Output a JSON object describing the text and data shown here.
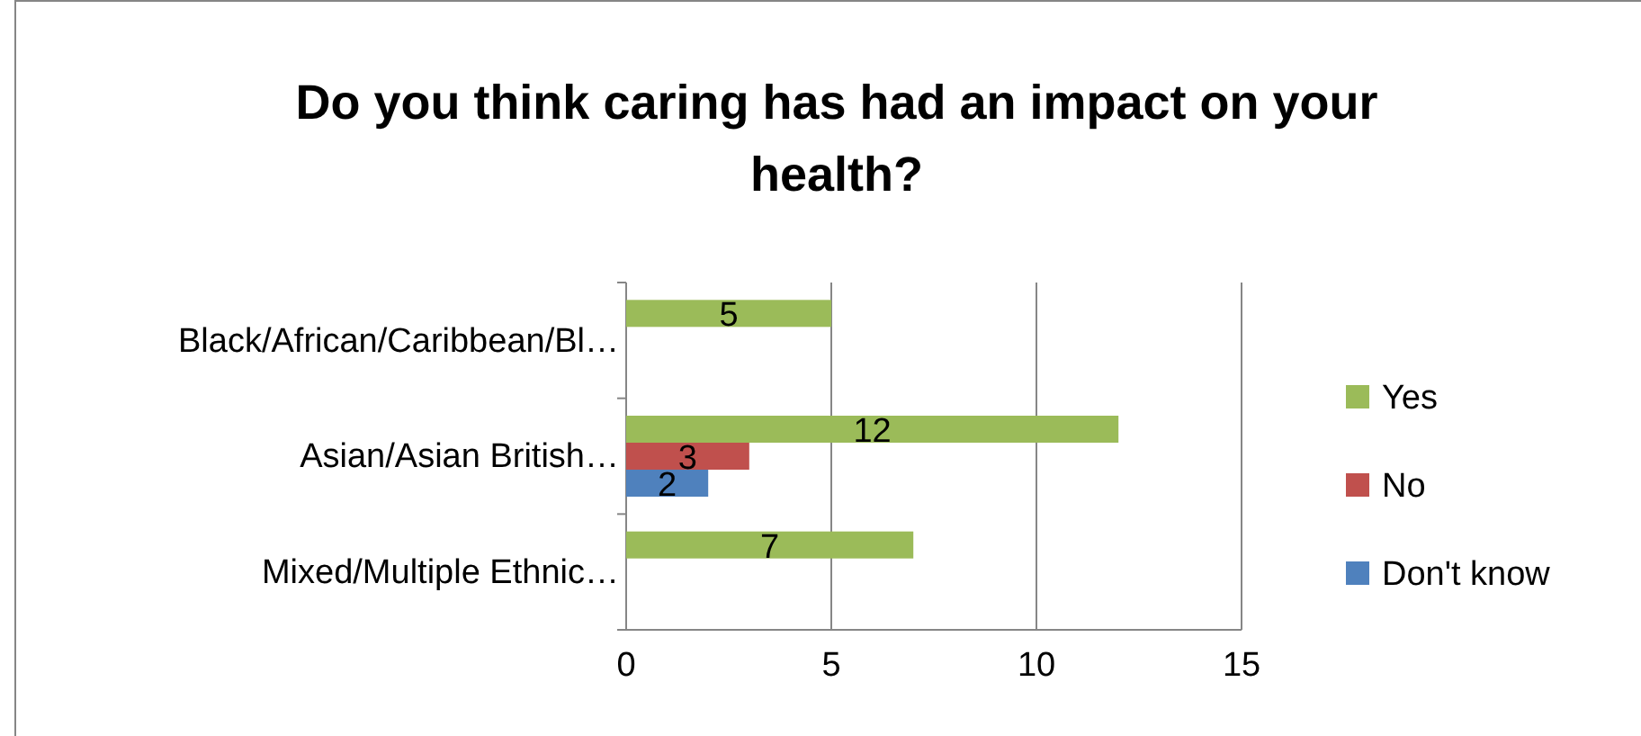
{
  "chart_data": {
    "type": "bar",
    "orientation": "horizontal",
    "title": "Do you think caring has had an impact on your health?",
    "categories": [
      "Black/African/Caribbean/Bl…",
      "Asian/Asian British…",
      "Mixed/Multiple Ethnic…"
    ],
    "series": [
      {
        "name": "Yes",
        "color": "#9bbb59",
        "values": [
          5,
          12,
          7
        ]
      },
      {
        "name": "No",
        "color": "#c0504d",
        "values": [
          null,
          3,
          null
        ]
      },
      {
        "name": "Don't know",
        "color": "#4f81bd",
        "values": [
          null,
          2,
          null
        ]
      }
    ],
    "xlim": [
      0,
      15
    ],
    "xticks": [
      0,
      5,
      10,
      15
    ],
    "grid": "x",
    "legend": "right",
    "data_labels": true
  }
}
